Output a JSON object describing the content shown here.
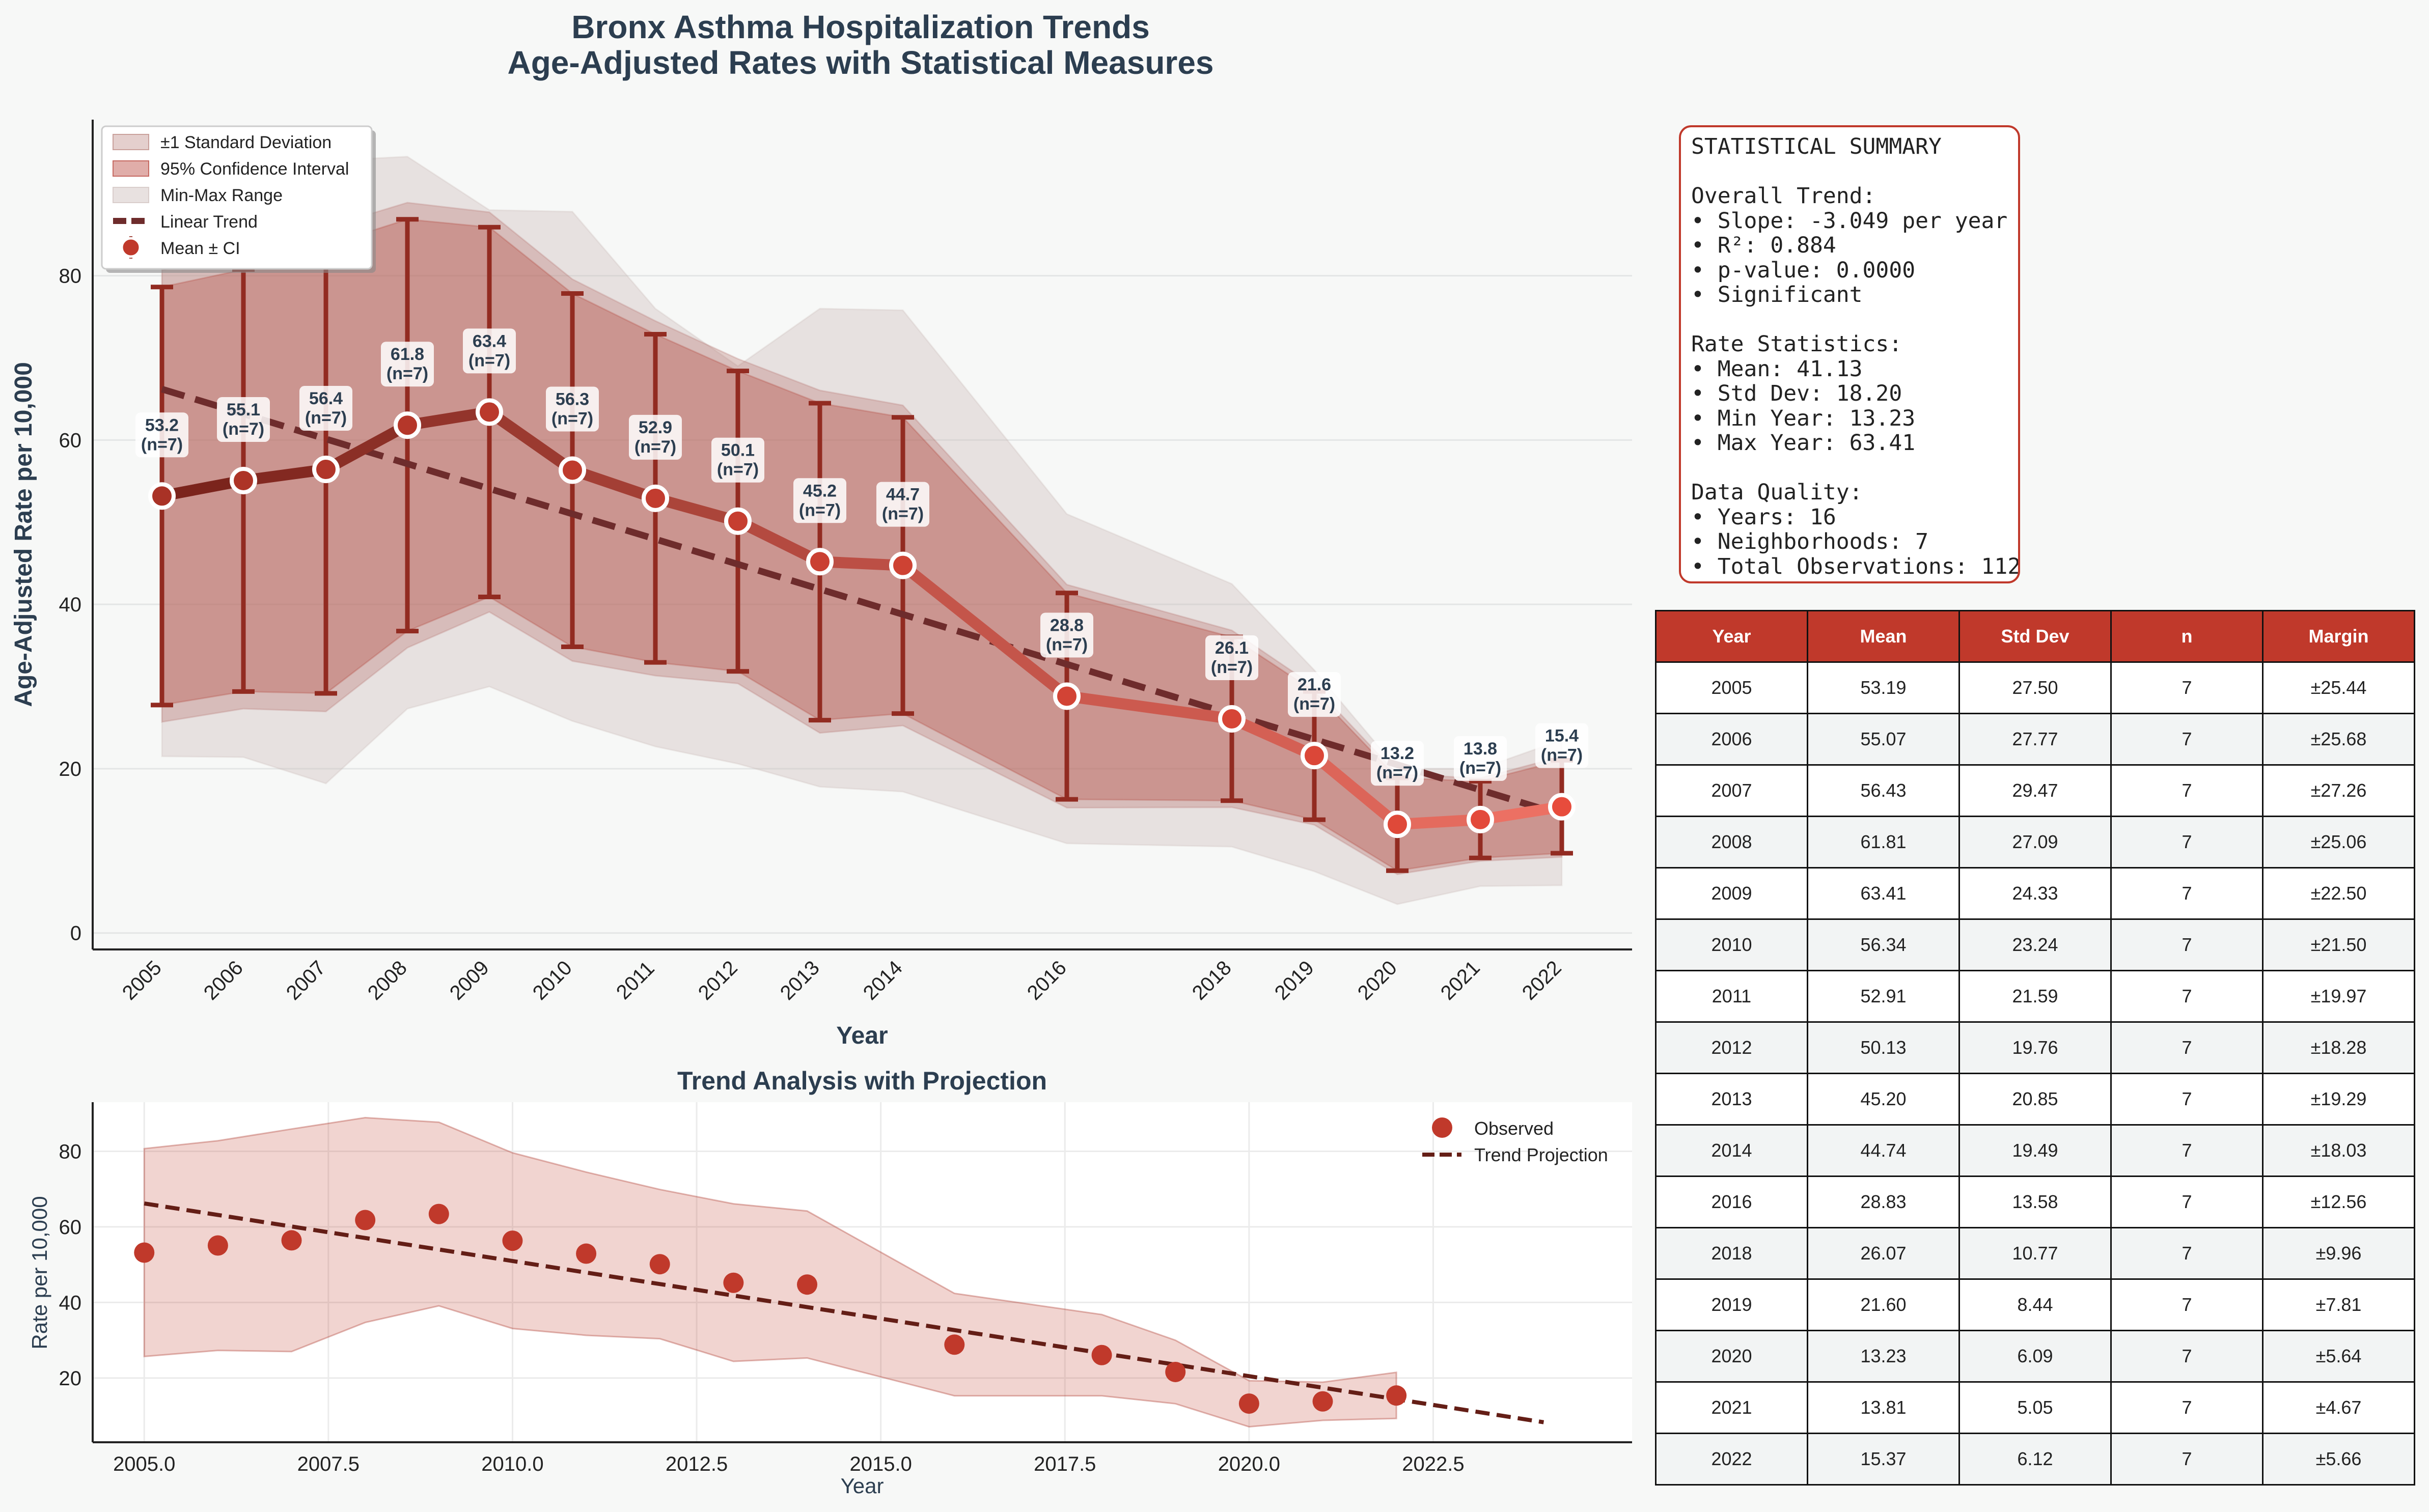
{
  "figure": {
    "title_line1": "Bronx Asthma Hospitalization Trends",
    "title_line2": "Age-Adjusted Rates with Statistical Measures"
  },
  "colors": {
    "accent": "#c0392b",
    "dark_red": "#7b241c",
    "trend": "#6e2c2c",
    "title_text": "#2c3e50"
  },
  "chart_data": [
    {
      "type": "line",
      "title": "",
      "xlabel": "Year",
      "ylabel": "Age-Adjusted Rate per 10,000",
      "ylim": [
        -2,
        99
      ],
      "yticks": [
        0,
        20,
        40,
        60,
        80
      ],
      "grid": true,
      "legend_position": "top-left",
      "legend": [
        "±1 Standard Deviation",
        "95% Confidence Interval",
        "Min-Max Range",
        "Linear Trend",
        "Mean ± CI"
      ],
      "categories": [
        "2005",
        "2006",
        "2007",
        "2008",
        "2009",
        "2010",
        "2011",
        "2012",
        "2013",
        "2014",
        "2016",
        "2018",
        "2019",
        "2020",
        "2021",
        "2022"
      ],
      "mean": [
        53.19,
        55.07,
        56.43,
        61.81,
        63.41,
        56.34,
        52.91,
        50.13,
        45.2,
        44.74,
        28.83,
        26.07,
        21.6,
        13.23,
        13.81,
        15.37
      ],
      "std_dev": [
        27.5,
        27.77,
        29.47,
        27.09,
        24.33,
        23.24,
        21.59,
        19.76,
        20.85,
        19.49,
        13.58,
        10.77,
        8.44,
        6.09,
        5.05,
        6.12
      ],
      "ci_margin": [
        25.44,
        25.68,
        27.26,
        25.06,
        22.5,
        21.5,
        19.97,
        18.28,
        19.29,
        18.03,
        12.56,
        9.96,
        7.81,
        5.64,
        4.67,
        5.66
      ],
      "min": [
        21.5,
        21.4,
        18.2,
        27.3,
        30.0,
        25.8,
        22.7,
        20.6,
        17.8,
        17.2,
        10.9,
        10.5,
        7.5,
        3.5,
        5.7,
        5.8
      ],
      "max": [
        87.0,
        90.5,
        94.0,
        94.5,
        88.0,
        87.8,
        76.0,
        69.0,
        76.0,
        75.8,
        51.0,
        42.5,
        32.0,
        20.0,
        20.0,
        23.5
      ],
      "point_labels": [
        "53.2\n(n=7)",
        "55.1\n(n=7)",
        "56.4\n(n=7)",
        "61.8\n(n=7)",
        "63.4\n(n=7)",
        "56.3\n(n=7)",
        "52.9\n(n=7)",
        "50.1\n(n=7)",
        "45.2\n(n=7)",
        "44.7\n(n=7)",
        "28.8\n(n=7)",
        "26.1\n(n=7)",
        "21.6\n(n=7)",
        "13.2\n(n=7)",
        "13.8\n(n=7)",
        "15.4\n(n=7)"
      ],
      "trend_line": {
        "start": 66.2,
        "end": 14.4
      }
    },
    {
      "type": "scatter",
      "title": "Trend Analysis with Projection",
      "xlabel": "Year",
      "ylabel": "Rate per 10,000",
      "xlim": [
        2004.3,
        2025.2
      ],
      "ylim": [
        3,
        93
      ],
      "xticks": [
        "2005.0",
        "2007.5",
        "2010.0",
        "2012.5",
        "2015.0",
        "2017.5",
        "2020.0",
        "2022.5"
      ],
      "xtick_values": [
        2005.0,
        2007.5,
        2010.0,
        2012.5,
        2015.0,
        2017.5,
        2020.0,
        2022.5
      ],
      "yticks": [
        20,
        40,
        60,
        80
      ],
      "grid": true,
      "legend_position": "top-right",
      "legend": [
        "Observed",
        "Trend Projection"
      ],
      "x": [
        2005,
        2006,
        2007,
        2008,
        2009,
        2010,
        2011,
        2012,
        2013,
        2014,
        2016,
        2018,
        2019,
        2020,
        2021,
        2022
      ],
      "observed": [
        53.19,
        55.07,
        56.43,
        61.81,
        63.41,
        56.34,
        52.91,
        50.13,
        45.2,
        44.74,
        28.83,
        26.07,
        21.6,
        13.23,
        13.81,
        15.37
      ],
      "band_upper": [
        80.7,
        82.8,
        85.9,
        88.9,
        87.7,
        79.6,
        74.5,
        69.9,
        66.1,
        64.2,
        42.4,
        36.8,
        30.0,
        19.3,
        18.9,
        21.5
      ],
      "band_lower": [
        25.7,
        27.3,
        27.0,
        34.7,
        39.1,
        33.1,
        31.3,
        30.4,
        24.4,
        25.3,
        15.3,
        15.3,
        13.2,
        7.1,
        8.8,
        9.3
      ],
      "projection": {
        "x": [
          2005,
          2024
        ],
        "y": [
          66.2,
          8.3
        ]
      }
    }
  ],
  "summary": {
    "text": "STATISTICAL SUMMARY\n\nOverall Trend:\n• Slope: -3.049 per year\n• R²: 0.884\n• p-value: 0.0000\n• Significant\n\nRate Statistics:\n• Mean: 41.13\n• Std Dev: 18.20\n• Min Year: 13.23\n• Max Year: 63.41\n\nData Quality:\n• Years: 16\n• Neighborhoods: 7\n• Total Observations: 112"
  },
  "table": {
    "headers": [
      "Year",
      "Mean",
      "Std Dev",
      "n",
      "Margin"
    ],
    "rows": [
      [
        "2005",
        "53.19",
        "27.50",
        "7",
        "±25.44"
      ],
      [
        "2006",
        "55.07",
        "27.77",
        "7",
        "±25.68"
      ],
      [
        "2007",
        "56.43",
        "29.47",
        "7",
        "±27.26"
      ],
      [
        "2008",
        "61.81",
        "27.09",
        "7",
        "±25.06"
      ],
      [
        "2009",
        "63.41",
        "24.33",
        "7",
        "±22.50"
      ],
      [
        "2010",
        "56.34",
        "23.24",
        "7",
        "±21.50"
      ],
      [
        "2011",
        "52.91",
        "21.59",
        "7",
        "±19.97"
      ],
      [
        "2012",
        "50.13",
        "19.76",
        "7",
        "±18.28"
      ],
      [
        "2013",
        "45.20",
        "20.85",
        "7",
        "±19.29"
      ],
      [
        "2014",
        "44.74",
        "19.49",
        "7",
        "±18.03"
      ],
      [
        "2016",
        "28.83",
        "13.58",
        "7",
        "±12.56"
      ],
      [
        "2018",
        "26.07",
        "10.77",
        "7",
        "±9.96"
      ],
      [
        "2019",
        "21.60",
        "8.44",
        "7",
        "±7.81"
      ],
      [
        "2020",
        "13.23",
        "6.09",
        "7",
        "±5.64"
      ],
      [
        "2021",
        "13.81",
        "5.05",
        "7",
        "±4.67"
      ],
      [
        "2022",
        "15.37",
        "6.12",
        "7",
        "±5.66"
      ]
    ]
  }
}
